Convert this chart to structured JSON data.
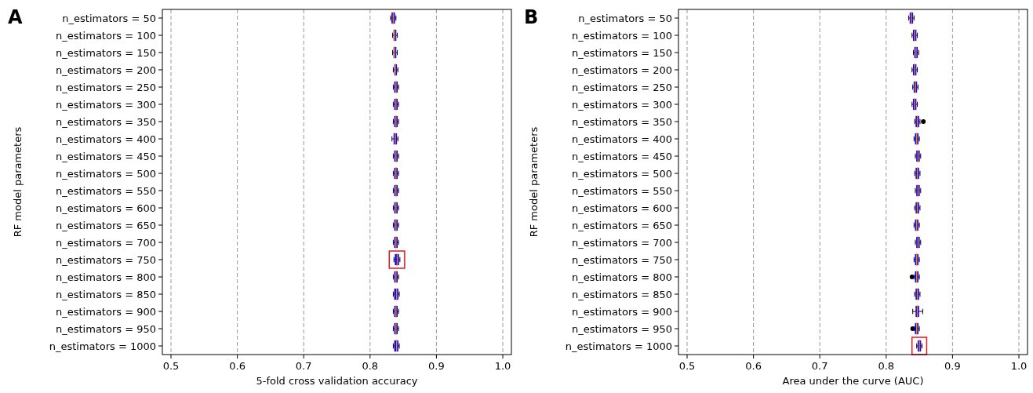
{
  "chart_data": [
    {
      "type": "box",
      "title": "A",
      "xlabel": "5-fold cross validation accuracy",
      "ylabel": "RF model parameters",
      "orientation": "horizontal",
      "grid": "x",
      "categories": [
        "n_estimators = 50",
        "n_estimators = 100",
        "n_estimators = 150",
        "n_estimators = 200",
        "n_estimators = 250",
        "n_estimators = 300",
        "n_estimators = 350",
        "n_estimators = 400",
        "n_estimators = 450",
        "n_estimators = 500",
        "n_estimators = 550",
        "n_estimators = 600",
        "n_estimators = 650",
        "n_estimators = 700",
        "n_estimators = 750",
        "n_estimators = 800",
        "n_estimators = 850",
        "n_estimators = 900",
        "n_estimators = 950",
        "n_estimators = 1000"
      ],
      "boxes": [
        {
          "low": 0.831,
          "q1": 0.833,
          "median": 0.835,
          "q3": 0.837,
          "high": 0.839
        },
        {
          "low": 0.834,
          "q1": 0.836,
          "median": 0.837,
          "q3": 0.839,
          "high": 0.841
        },
        {
          "low": 0.834,
          "q1": 0.836,
          "median": 0.837,
          "q3": 0.839,
          "high": 0.841
        },
        {
          "low": 0.835,
          "q1": 0.837,
          "median": 0.838,
          "q3": 0.84,
          "high": 0.842
        },
        {
          "low": 0.835,
          "q1": 0.837,
          "median": 0.839,
          "q3": 0.841,
          "high": 0.843
        },
        {
          "low": 0.835,
          "q1": 0.837,
          "median": 0.839,
          "q3": 0.841,
          "high": 0.843
        },
        {
          "low": 0.835,
          "q1": 0.837,
          "median": 0.839,
          "q3": 0.841,
          "high": 0.843
        },
        {
          "low": 0.833,
          "q1": 0.836,
          "median": 0.838,
          "q3": 0.84,
          "high": 0.842
        },
        {
          "low": 0.835,
          "q1": 0.837,
          "median": 0.839,
          "q3": 0.841,
          "high": 0.843
        },
        {
          "low": 0.835,
          "q1": 0.837,
          "median": 0.839,
          "q3": 0.841,
          "high": 0.843
        },
        {
          "low": 0.835,
          "q1": 0.837,
          "median": 0.839,
          "q3": 0.841,
          "high": 0.843
        },
        {
          "low": 0.835,
          "q1": 0.837,
          "median": 0.839,
          "q3": 0.841,
          "high": 0.843
        },
        {
          "low": 0.835,
          "q1": 0.837,
          "median": 0.839,
          "q3": 0.841,
          "high": 0.843
        },
        {
          "low": 0.835,
          "q1": 0.837,
          "median": 0.839,
          "q3": 0.841,
          "high": 0.843
        },
        {
          "low": 0.836,
          "q1": 0.838,
          "median": 0.841,
          "q3": 0.843,
          "high": 0.845
        },
        {
          "low": 0.835,
          "q1": 0.837,
          "median": 0.839,
          "q3": 0.841,
          "high": 0.843
        },
        {
          "low": 0.835,
          "q1": 0.837,
          "median": 0.84,
          "q3": 0.842,
          "high": 0.844
        },
        {
          "low": 0.835,
          "q1": 0.837,
          "median": 0.839,
          "q3": 0.841,
          "high": 0.843
        },
        {
          "low": 0.835,
          "q1": 0.837,
          "median": 0.839,
          "q3": 0.841,
          "high": 0.843
        },
        {
          "low": 0.835,
          "q1": 0.837,
          "median": 0.84,
          "q3": 0.842,
          "high": 0.844
        }
      ],
      "color": "#0000ff",
      "xlim": [
        0.487,
        1.013
      ],
      "xticks": [
        0.5,
        0.6,
        0.7,
        0.8,
        0.9,
        {
          "value": 1.0,
          "label": "1.0"
        }
      ]
    },
    {
      "type": "box",
      "title": "B",
      "xlabel": "Area under the curve (AUC)",
      "ylabel": "RF model parameters",
      "orientation": "horizontal",
      "grid": "x",
      "categories": [
        "n_estimators = 50",
        "n_estimators = 100",
        "n_estimators = 150",
        "n_estimators = 200",
        "n_estimators = 250",
        "n_estimators = 300",
        "n_estimators = 350",
        "n_estimators = 400",
        "n_estimators = 450",
        "n_estimators = 500",
        "n_estimators = 550",
        "n_estimators = 600",
        "n_estimators = 650",
        "n_estimators = 700",
        "n_estimators = 750",
        "n_estimators = 800",
        "n_estimators = 850",
        "n_estimators = 900",
        "n_estimators = 950",
        "n_estimators = 1000"
      ],
      "boxes": [
        {
          "low": 0.834,
          "q1": 0.836,
          "median": 0.838,
          "q3": 0.84,
          "high": 0.842
        },
        {
          "low": 0.839,
          "q1": 0.841,
          "median": 0.843,
          "q3": 0.845,
          "high": 0.847
        },
        {
          "low": 0.841,
          "q1": 0.843,
          "median": 0.845,
          "q3": 0.847,
          "high": 0.849
        },
        {
          "low": 0.839,
          "q1": 0.841,
          "median": 0.843,
          "q3": 0.845,
          "high": 0.847
        },
        {
          "low": 0.84,
          "q1": 0.842,
          "median": 0.844,
          "q3": 0.846,
          "high": 0.848
        },
        {
          "low": 0.839,
          "q1": 0.841,
          "median": 0.843,
          "q3": 0.845,
          "high": 0.847
        },
        {
          "low": 0.843,
          "q1": 0.845,
          "median": 0.847,
          "q3": 0.849,
          "high": 0.851,
          "outliers": [
            0.856
          ]
        },
        {
          "low": 0.842,
          "q1": 0.844,
          "median": 0.846,
          "q3": 0.848,
          "high": 0.85
        },
        {
          "low": 0.844,
          "q1": 0.846,
          "median": 0.848,
          "q3": 0.85,
          "high": 0.852
        },
        {
          "low": 0.843,
          "q1": 0.845,
          "median": 0.847,
          "q3": 0.849,
          "high": 0.851
        },
        {
          "low": 0.844,
          "q1": 0.846,
          "median": 0.848,
          "q3": 0.85,
          "high": 0.852
        },
        {
          "low": 0.843,
          "q1": 0.845,
          "median": 0.847,
          "q3": 0.849,
          "high": 0.851
        },
        {
          "low": 0.842,
          "q1": 0.844,
          "median": 0.846,
          "q3": 0.848,
          "high": 0.85
        },
        {
          "low": 0.844,
          "q1": 0.846,
          "median": 0.848,
          "q3": 0.85,
          "high": 0.852
        },
        {
          "low": 0.842,
          "q1": 0.844,
          "median": 0.846,
          "q3": 0.848,
          "high": 0.85
        },
        {
          "low": 0.843,
          "q1": 0.844,
          "median": 0.846,
          "q3": 0.848,
          "high": 0.85,
          "outliers": [
            0.839
          ]
        },
        {
          "low": 0.843,
          "q1": 0.845,
          "median": 0.847,
          "q3": 0.849,
          "high": 0.851
        },
        {
          "low": 0.84,
          "q1": 0.845,
          "median": 0.847,
          "q3": 0.849,
          "high": 0.855
        },
        {
          "low": 0.843,
          "q1": 0.844,
          "median": 0.846,
          "q3": 0.848,
          "high": 0.85,
          "outliers": [
            0.84
          ]
        },
        {
          "low": 0.846,
          "q1": 0.848,
          "median": 0.85,
          "q3": 0.852,
          "high": 0.854
        }
      ],
      "color": "#0000ff",
      "xlim": [
        0.487,
        1.013
      ],
      "xticks": [
        0.5,
        0.6,
        0.7,
        0.8,
        0.9,
        {
          "value": 1.0,
          "label": "1.0"
        }
      ]
    }
  ]
}
